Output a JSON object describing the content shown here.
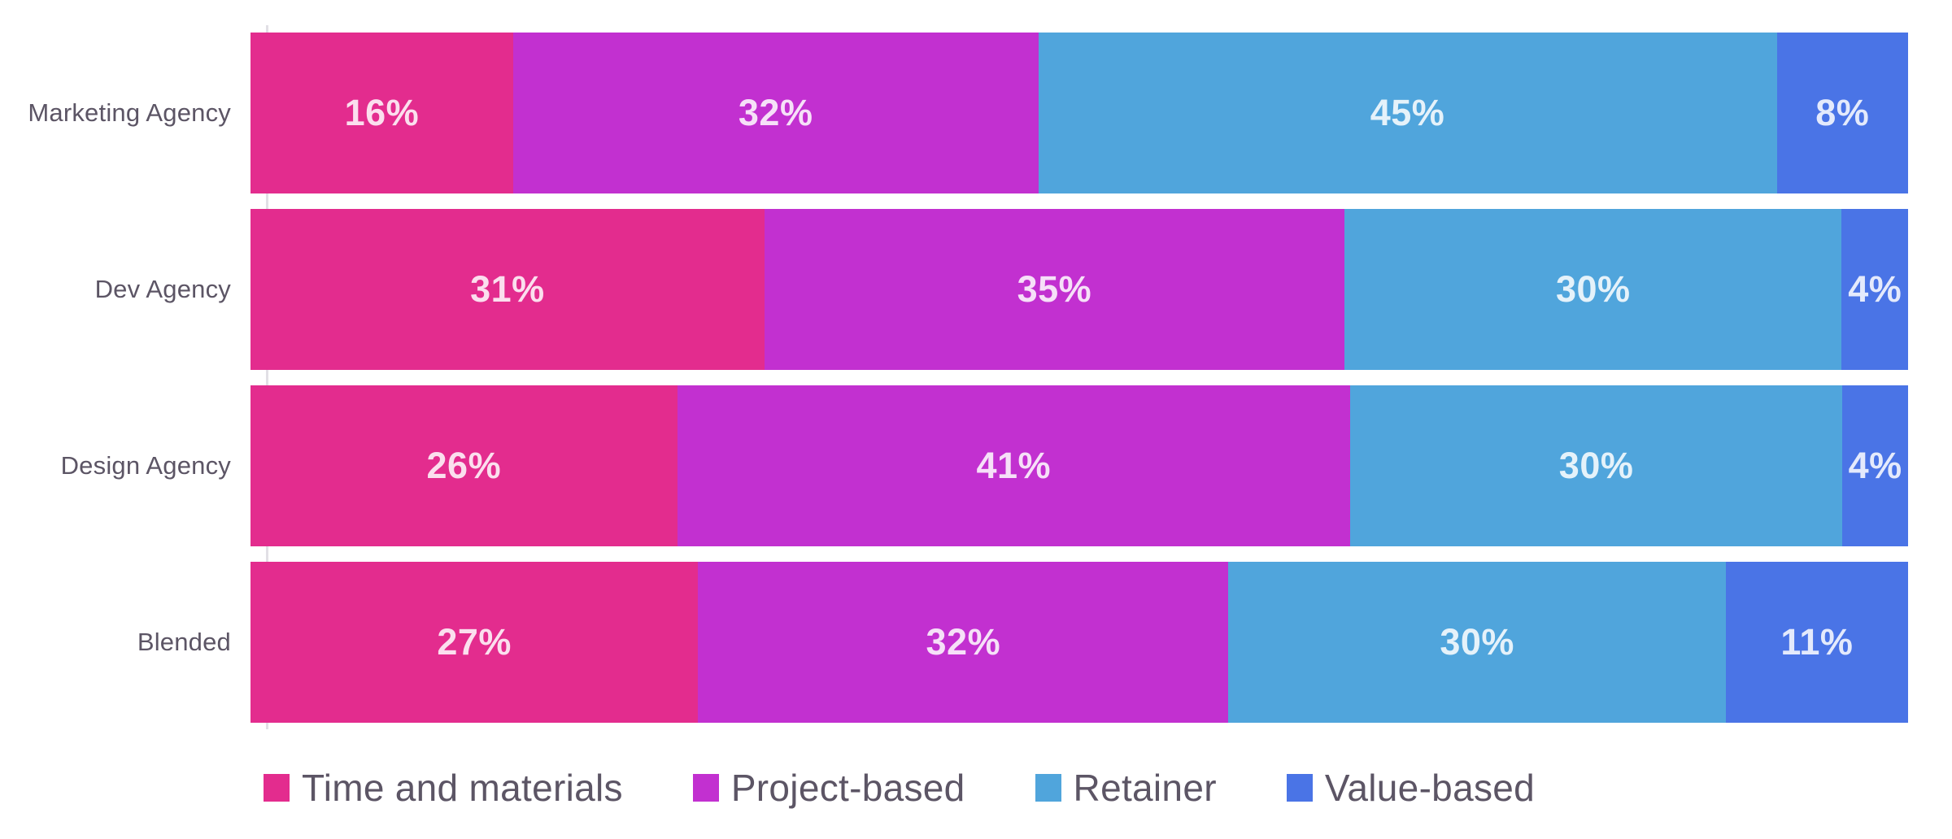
{
  "chart_data": {
    "type": "bar",
    "variant": "stacked-100-horizontal",
    "title": "",
    "categories": [
      "Marketing Agency",
      "Dev Agency",
      "Design Agency",
      "Blended"
    ],
    "series": [
      {
        "name": "Time and materials",
        "color": "#e32c8e",
        "values": [
          16,
          31,
          26,
          27
        ]
      },
      {
        "name": "Project-based",
        "color": "#c230d0",
        "values": [
          32,
          35,
          41,
          32
        ]
      },
      {
        "name": "Retainer",
        "color": "#50a5dc",
        "values": [
          45,
          30,
          30,
          30
        ]
      },
      {
        "name": "Value-based",
        "color": "#4a74e6",
        "values": [
          8,
          4,
          4,
          11
        ]
      }
    ],
    "value_suffix": "%",
    "data_labels_visible": true,
    "legend_position": "bottom",
    "grid": false,
    "axes": {
      "y_axis_line": true,
      "x_tick_labels": false
    }
  },
  "colors": {
    "background": "#ffffff",
    "axis_line": "#e2e0e6",
    "category_label": "#5c5565",
    "legend_label": "#5c5565",
    "bar_value_label": "rgba(255,255,255,0.85)"
  }
}
